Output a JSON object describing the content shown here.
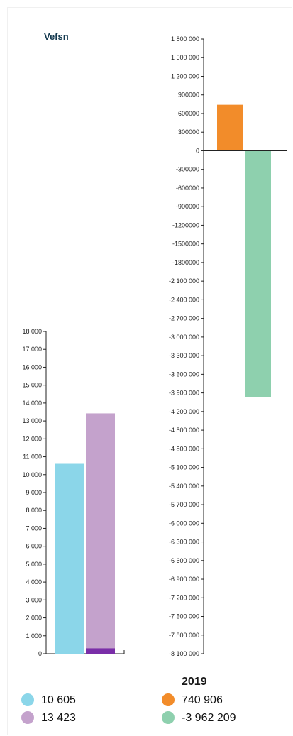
{
  "title": "Vefsn",
  "year": "2019",
  "colors": {
    "cyan": "#8bd6e9",
    "lilac": "#c4a2cc",
    "purple": "#7a2ea8",
    "orange": "#f28c2a",
    "green": "#8ed0ae"
  },
  "chart_data": [
    {
      "type": "bar",
      "ylim": [
        0,
        18000
      ],
      "yticks": [
        "0",
        "1 000",
        "2 000",
        "3 000",
        "4 000",
        "5 000",
        "6 000",
        "7 000",
        "8 000",
        "9 000",
        "10 000",
        "11 000",
        "12 000",
        "13 000",
        "14 000",
        "15 000",
        "16 000",
        "17 000",
        "18 000"
      ],
      "series": [
        {
          "values": [
            10605
          ],
          "color": "#8bd6e9"
        },
        {
          "values": [
            13423
          ],
          "color": "#c4a2cc"
        },
        {
          "values": [
            300
          ],
          "color": "#7a2ea8"
        }
      ]
    },
    {
      "type": "bar",
      "ylim": [
        -8100000,
        1800000
      ],
      "yticks": [
        "1 800 000",
        "1 500 000",
        "1 200 000",
        "900000",
        "600000",
        "300000",
        "0",
        "-300000",
        "-600000",
        "-900000",
        "-1200000",
        "-1500000",
        "-1800000",
        "-2 100 000",
        "-2 400 000",
        "-2 700 000",
        "-3 000 000",
        "-3 300 000",
        "-3 600 000",
        "-3 900 000",
        "-4 200 000",
        "-4 500 000",
        "-4 800 000",
        "-5 100 000",
        "-5 400 000",
        "-5 700 000",
        "-6 000 000",
        "-6 300 000",
        "-6 600 000",
        "-6 900 000",
        "-7 200 000",
        "-7 500 000",
        "-7 800 000",
        "-8 100 000"
      ],
      "series": [
        {
          "values": [
            740906
          ],
          "color": "#f28c2a"
        },
        {
          "values": [
            -3962209
          ],
          "color": "#8ed0ae"
        }
      ]
    }
  ],
  "legend": {
    "left": [
      {
        "label": "10 605",
        "color": "#8bd6e9"
      },
      {
        "label": "13 423",
        "color": "#c4a2cc"
      }
    ],
    "right": [
      {
        "label": "740 906",
        "color": "#f28c2a"
      },
      {
        "label": "-3 962 209",
        "color": "#8ed0ae"
      }
    ]
  }
}
